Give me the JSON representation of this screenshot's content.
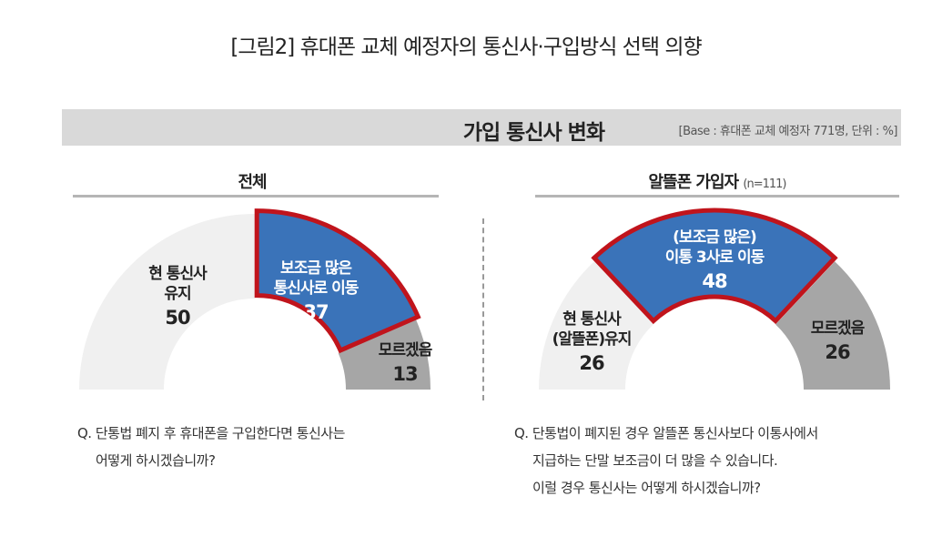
{
  "title": "[그림2] 휴대폰 교체 예정자의 통신사·구입방식 선택 의향",
  "banner": {
    "title": "가입 통신사 변화",
    "base": "[Base : 휴대폰 교체 예정자 771명, 단위 : %]"
  },
  "colors": {
    "keep": "#f0f0f0",
    "move": "#3a73b9",
    "move_border": "#c0141c",
    "unknown": "#a6a6a6"
  },
  "chart_data": [
    {
      "type": "pie",
      "variant": "half-donut",
      "title": "전체",
      "subtitle": "",
      "slices": [
        {
          "label_lines": [
            "현 통신사",
            "유지"
          ],
          "value": 50,
          "color": "#f0f0f0"
        },
        {
          "label_lines": [
            "보조금 많은",
            "통신사로 이동"
          ],
          "value": 37,
          "color": "#3a73b9",
          "highlighted": true
        },
        {
          "label_lines": [
            "모르겠음"
          ],
          "value": 13,
          "color": "#a6a6a6"
        }
      ],
      "question": [
        "Q. 단통법 폐지 후 휴대폰을 구입한다면 통신사는",
        "어떻게 하시겠습니까?"
      ]
    },
    {
      "type": "pie",
      "variant": "half-donut",
      "title": "알뜰폰 가입자",
      "subtitle": "(n=111)",
      "slices": [
        {
          "label_lines": [
            "현 통신사",
            "(알뜰폰)유지"
          ],
          "value": 26,
          "color": "#f0f0f0"
        },
        {
          "label_lines": [
            "(보조금 많은)",
            "이통 3사로 이동"
          ],
          "value": 48,
          "color": "#3a73b9",
          "highlighted": true
        },
        {
          "label_lines": [
            "모르겠음"
          ],
          "value": 26,
          "color": "#a6a6a6"
        }
      ],
      "question": [
        "Q. 단통법이 폐지된 경우 알뜰폰 통신사보다 이통사에서",
        "지급하는 단말 보조금이 더 많을 수 있습니다.",
        "이럴 경우 통신사는 어떻게 하시겠습니까?"
      ]
    }
  ]
}
